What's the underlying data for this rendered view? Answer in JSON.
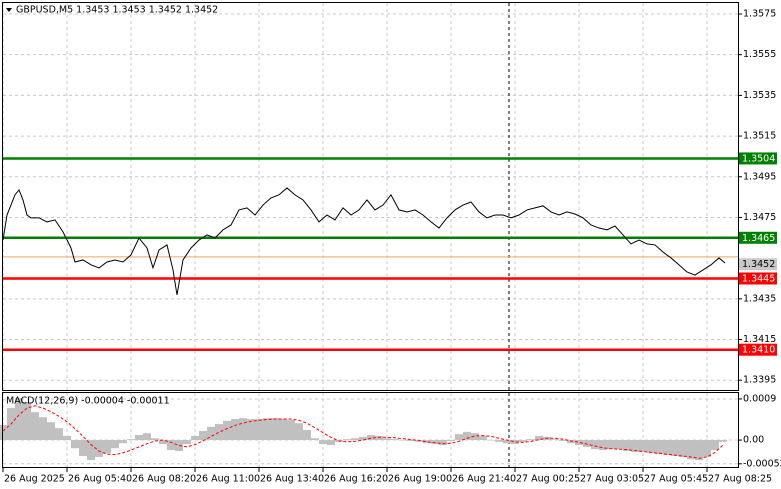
{
  "chart_data": [
    {
      "type": "line",
      "title": "GBPUSD,M5  1.3453 1.3453 1.3452 1.3452",
      "color": "#000000",
      "x": [
        0,
        2,
        6,
        8,
        10,
        12,
        14,
        18,
        22,
        26,
        30,
        34,
        36,
        40,
        44,
        48,
        52,
        56,
        60,
        64,
        68,
        72,
        75,
        78,
        82,
        85,
        87,
        90,
        94,
        98,
        102,
        106,
        110,
        114,
        118,
        122,
        126,
        130,
        134,
        138,
        142,
        146,
        150,
        154,
        158,
        162,
        166,
        170,
        174,
        178,
        182,
        186,
        190,
        194,
        198,
        202,
        206,
        210,
        214,
        218,
        222,
        226,
        230,
        234,
        238,
        242,
        246,
        250,
        254,
        258,
        262,
        266,
        270,
        274,
        278,
        282,
        286,
        290,
        294,
        298,
        302,
        306,
        310,
        314,
        318,
        322,
        326,
        330,
        334,
        338,
        342,
        346,
        350,
        354,
        358,
        361
      ],
      "values": [
        1.34639,
        1.34762,
        1.34861,
        1.34885,
        1.34836,
        1.34762,
        1.34748,
        1.34748,
        1.34728,
        1.34738,
        1.34679,
        1.346,
        1.34531,
        1.34541,
        1.34517,
        1.34502,
        1.34531,
        1.34541,
        1.34531,
        1.34566,
        1.34649,
        1.346,
        1.34502,
        1.3459,
        1.34615,
        1.34492,
        1.34369,
        1.34541,
        1.346,
        1.34639,
        1.34664,
        1.34649,
        1.34689,
        1.34713,
        1.34787,
        1.34797,
        1.34762,
        1.34811,
        1.34846,
        1.34861,
        1.34895,
        1.34861,
        1.34836,
        1.34787,
        1.34728,
        1.34762,
        1.34738,
        1.34797,
        1.34762,
        1.34787,
        1.34836,
        1.34787,
        1.34811,
        1.34861,
        1.34787,
        1.34777,
        1.34787,
        1.34762,
        1.34728,
        1.34698,
        1.34748,
        1.34787,
        1.34811,
        1.34826,
        1.34777,
        1.34748,
        1.34762,
        1.34762,
        1.34748,
        1.34762,
        1.34787,
        1.34797,
        1.34807,
        1.34777,
        1.34762,
        1.34777,
        1.34767,
        1.34748,
        1.34713,
        1.34698,
        1.34689,
        1.34708,
        1.34664,
        1.3462,
        1.34639,
        1.3462,
        1.34615,
        1.3458,
        1.34551,
        1.34517,
        1.34482,
        1.34467,
        1.34492,
        1.34517,
        1.34551,
        1.34526
      ],
      "xlim": [
        0,
        367.5
      ],
      "xticks": [
        {
          "value": 0,
          "label": "26 Aug 2025"
        },
        {
          "value": 32,
          "label": "26 Aug 05:40"
        },
        {
          "value": 64,
          "label": "26 Aug 08:20"
        },
        {
          "value": 96,
          "label": "26 Aug 11:00"
        },
        {
          "value": 128,
          "label": "26 Aug 13:40"
        },
        {
          "value": 160,
          "label": "26 Aug 16:20"
        },
        {
          "value": 192,
          "label": "26 Aug 19:00"
        },
        {
          "value": 224,
          "label": "26 Aug 21:40"
        },
        {
          "value": 256,
          "label": "27 Aug 00:25"
        },
        {
          "value": 288,
          "label": "27 Aug 03:05"
        },
        {
          "value": 320,
          "label": "27 Aug 05:45"
        },
        {
          "value": 352,
          "label": "27 Aug 08:25"
        }
      ],
      "ylim": [
        1.33897,
        1.35804
      ],
      "yticks": [
        1.3575,
        1.3555,
        1.3535,
        1.3515,
        1.3495,
        1.3475,
        1.3435,
        1.3415,
        1.3395
      ],
      "grid": true,
      "levels": [
        {
          "value": 1.3504,
          "color": "#008000"
        },
        {
          "value": 1.3465,
          "color": "#008000"
        },
        {
          "value": 1.3445,
          "color": "#ff0000"
        },
        {
          "value": {
            "value": 1.341,
            "label": "1.3410"
          },
          "color": "#ff0000"
        }
      ],
      "ask_line": {
        "value": 1.34556,
        "color": "#f4a460"
      },
      "current_price": 1.3452,
      "separator_x": 253
    },
    {
      "type": "macd",
      "title": "MACD(12,26,9) -0.00004 -0.00011",
      "x": [
        0,
        4,
        8,
        12,
        16,
        20,
        24,
        28,
        32,
        36,
        40,
        44,
        48,
        52,
        56,
        60,
        64,
        68,
        72,
        76,
        80,
        84,
        88,
        92,
        96,
        100,
        104,
        108,
        112,
        116,
        120,
        124,
        128,
        132,
        136,
        140,
        144,
        148,
        152,
        156,
        160,
        164,
        168,
        172,
        176,
        180,
        184,
        188,
        192,
        196,
        200,
        204,
        208,
        212,
        216,
        220,
        224,
        228,
        232,
        236,
        240,
        244,
        248,
        252,
        256,
        260,
        264,
        268,
        272,
        276,
        280,
        284,
        288,
        292,
        296,
        300,
        304,
        308,
        312,
        316,
        320,
        324,
        328,
        332,
        336,
        340,
        344,
        348,
        352,
        356,
        360
      ],
      "histogram": {
        "color": "#c0c0c0",
        "values": [
          0.00033,
          0.0007,
          0.00092,
          0.00083,
          0.00061,
          0.0005,
          0.00039,
          0.00026,
          9e-05,
          -0.00018,
          -0.00035,
          -0.00044,
          -0.00037,
          -0.00029,
          -0.00018,
          -7e-05,
          2e-05,
          0.00011,
          0.00015,
          4e-05,
          -9e-05,
          -0.00022,
          -0.00024,
          -9e-05,
          9e-05,
          0.0002,
          0.00029,
          0.00035,
          0.00042,
          0.00046,
          0.00048,
          0.00046,
          0.00046,
          0.00048,
          0.00048,
          0.00046,
          0.00044,
          0.00037,
          0.00022,
          4e-05,
          -9e-05,
          -0.00011,
          -4e-05,
          2e-05,
          4e-05,
          7e-05,
          0.00011,
          9e-05,
          4e-05,
          2e-05,
          0,
          -2e-05,
          -4e-05,
          -7e-05,
          -9e-05,
          -0.00011,
          -2e-05,
          0.00013,
          0.00018,
          0.00015,
          9e-05,
          0,
          -4e-05,
          -7e-05,
          -9e-05,
          -4e-05,
          2e-05,
          9e-05,
          7e-05,
          2e-05,
          -2e-05,
          -7e-05,
          -0.00011,
          -0.00015,
          -0.0002,
          -0.00022,
          -0.0002,
          -0.0002,
          -0.00024,
          -0.00026,
          -0.00026,
          -0.00029,
          -0.00031,
          -0.00033,
          -0.00035,
          -0.00037,
          -0.00042,
          -0.00044,
          -0.00037,
          -0.00022,
          -4e-05
        ]
      },
      "signal": {
        "color": "#ff0000",
        "values": [
          0.0002,
          0.00035,
          0.00055,
          0.0007,
          0.00075,
          0.0007,
          0.00062,
          0.00052,
          0.0004,
          0.00025,
          8e-05,
          -0.0001,
          -0.00024,
          -0.00031,
          -0.00032,
          -0.00028,
          -0.00022,
          -0.00015,
          -8e-05,
          -2e-05,
          0,
          -5e-05,
          -0.00012,
          -0.00015,
          -0.0001,
          -2e-05,
          8e-05,
          0.00017,
          0.00025,
          0.00032,
          0.00037,
          0.00041,
          0.00043,
          0.00045,
          0.00046,
          0.00046,
          0.00046,
          0.00043,
          0.00037,
          0.00027,
          0.00016,
          6e-05,
          -2e-05,
          -4e-05,
          -3e-05,
          0,
          4e-05,
          6e-05,
          6e-05,
          5e-05,
          3e-05,
          1e-05,
          -1e-05,
          -4e-05,
          -6e-05,
          -8e-05,
          -7e-05,
          -3e-05,
          4e-05,
          9e-05,
          0.0001,
          8e-05,
          4e-05,
          0,
          -4e-05,
          -5e-05,
          -3e-05,
          1e-05,
          4e-05,
          4e-05,
          2e-05,
          -2e-05,
          -5e-05,
          -9e-05,
          -0.00013,
          -0.00017,
          -0.00019,
          -0.0002,
          -0.00021,
          -0.00023,
          -0.00025,
          -0.00027,
          -0.00029,
          -0.00031,
          -0.00033,
          -0.00035,
          -0.00037,
          -0.0004,
          -0.00037,
          -0.00027,
          -0.00011
        ]
      },
      "ylim": [
        -0.00059,
        0.00103
      ],
      "yticks": [
        0.0009,
        {
          "value": 0,
          "label": "0.00"
        },
        -0.00052
      ]
    }
  ]
}
